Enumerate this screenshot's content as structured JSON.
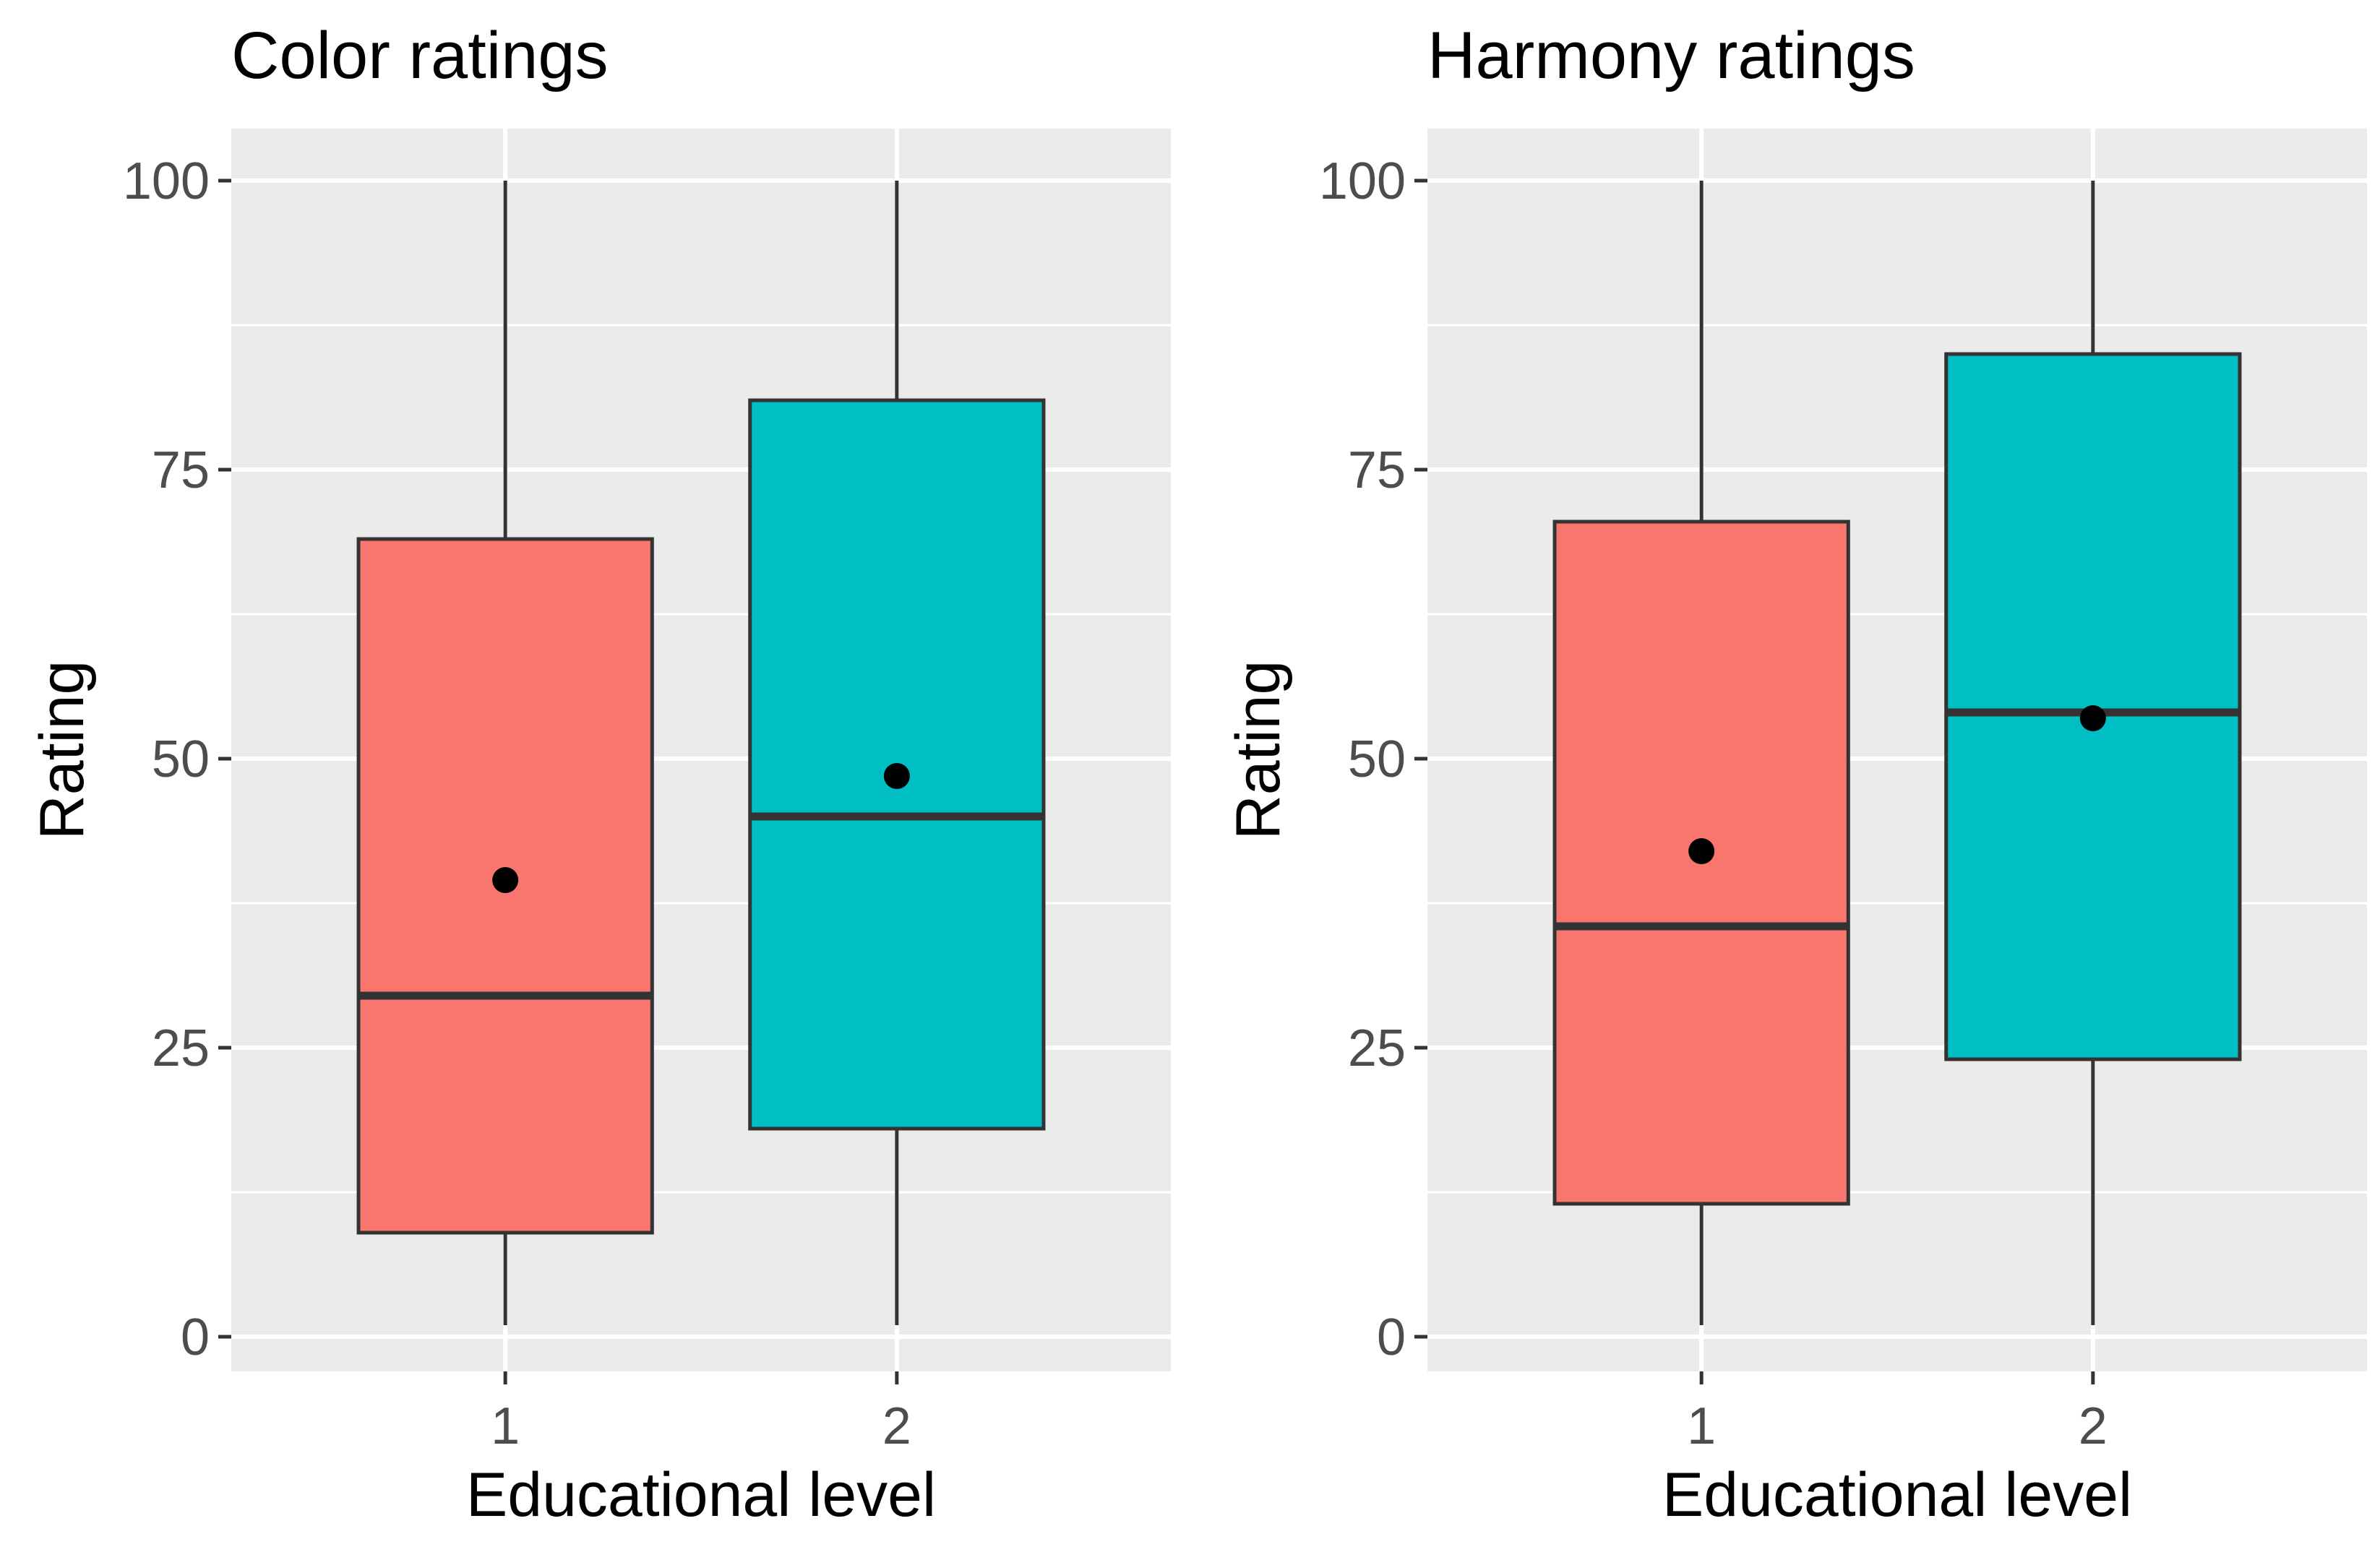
{
  "chart_data": [
    {
      "type": "box",
      "title": "Color ratings",
      "xlabel": "Educational level",
      "ylabel": "Rating",
      "ylim": [
        -3,
        104.5
      ],
      "y_ticks": [
        0,
        25,
        50,
        75,
        100
      ],
      "y_minor_ticks": [
        12.5,
        37.5,
        62.5,
        87.5
      ],
      "categories": [
        "1",
        "2"
      ],
      "boxes": [
        {
          "category": "1",
          "min": 1,
          "q1": 9,
          "median": 29.5,
          "q3": 69,
          "max": 100,
          "mean": 39.5,
          "color": "#F8766D"
        },
        {
          "category": "2",
          "min": 1,
          "q1": 18,
          "median": 45,
          "q3": 81,
          "max": 100,
          "mean": 48.5,
          "color": "#00BFC4"
        }
      ]
    },
    {
      "type": "box",
      "title": "Harmony ratings",
      "xlabel": "Educational level",
      "ylabel": "Rating",
      "ylim": [
        -3,
        104.5
      ],
      "y_ticks": [
        0,
        25,
        50,
        75,
        100
      ],
      "y_minor_ticks": [
        12.5,
        37.5,
        62.5,
        87.5
      ],
      "categories": [
        "1",
        "2"
      ],
      "boxes": [
        {
          "category": "1",
          "min": 1,
          "q1": 11.5,
          "median": 35.5,
          "q3": 70.5,
          "max": 100,
          "mean": 42,
          "color": "#F8766D"
        },
        {
          "category": "2",
          "min": 1,
          "q1": 24,
          "median": 54,
          "q3": 85,
          "max": 100,
          "mean": 53.5,
          "color": "#00BFC4"
        }
      ]
    }
  ],
  "style": {
    "panel_bg": "#EBEBEB",
    "grid": "#FFFFFF",
    "box_line": "#333333",
    "mean_dot": "#000000"
  }
}
